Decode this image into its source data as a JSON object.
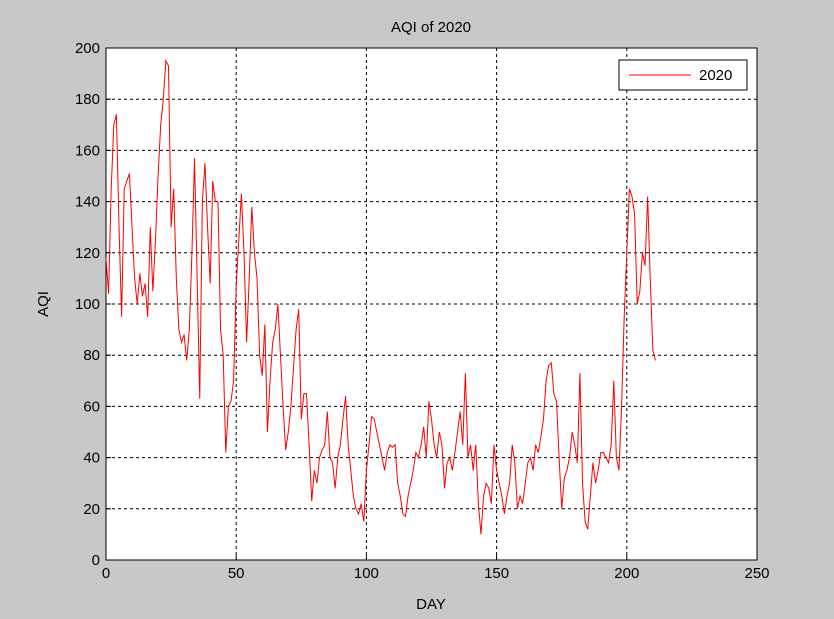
{
  "chart_data": {
    "type": "line",
    "title": "AQI of 2020",
    "x_label": "DAY",
    "y_label": "AQI",
    "xlim": [
      0,
      250
    ],
    "xticks": [
      0,
      50,
      100,
      150,
      200,
      250
    ],
    "ylim": [
      0,
      200
    ],
    "yticks": [
      0,
      20,
      40,
      60,
      80,
      100,
      120,
      140,
      160,
      180,
      200
    ],
    "grid": true,
    "legend": "upper right",
    "series": [
      {
        "name": "2020",
        "color": "#ff0000",
        "values": [
          118,
          104,
          145,
          170,
          174,
          130,
          95,
          145,
          148,
          151,
          130,
          110,
          100,
          112,
          103,
          108,
          95,
          130,
          105,
          125,
          150,
          170,
          180,
          195,
          193,
          130,
          145,
          110,
          90,
          85,
          88,
          78,
          90,
          120,
          157,
          110,
          63,
          140,
          155,
          130,
          108,
          148,
          140,
          140,
          90,
          80,
          42,
          60,
          62,
          70,
          107,
          125,
          143,
          120,
          85,
          110,
          138,
          120,
          110,
          80,
          72,
          92,
          50,
          70,
          85,
          90,
          100,
          80,
          60,
          43,
          50,
          60,
          75,
          90,
          98,
          55,
          65,
          65,
          45,
          23,
          35,
          30,
          40,
          43,
          45,
          58,
          40,
          38,
          28,
          40,
          45,
          55,
          64,
          45,
          35,
          25,
          20,
          18,
          22,
          15,
          35,
          45,
          56,
          55,
          50,
          45,
          40,
          35,
          42,
          45,
          44,
          45,
          30,
          25,
          18,
          17,
          25,
          30,
          35,
          42,
          40,
          45,
          52,
          40,
          62,
          55,
          45,
          40,
          50,
          45,
          28,
          38,
          40,
          35,
          42,
          50,
          58,
          45,
          73,
          40,
          45,
          35,
          45,
          22,
          10,
          25,
          30,
          28,
          22,
          45,
          35,
          30,
          25,
          18,
          25,
          30,
          45,
          38,
          20,
          25,
          22,
          30,
          38,
          40,
          35,
          45,
          42,
          48,
          55,
          70,
          76,
          77,
          65,
          62,
          40,
          20,
          32,
          35,
          40,
          50,
          45,
          38,
          73,
          30,
          15,
          12,
          25,
          38,
          30,
          35,
          42,
          42,
          40,
          38,
          45,
          70,
          40,
          35,
          60,
          95,
          120,
          145,
          142,
          135,
          100,
          105,
          120,
          115,
          142,
          110,
          82,
          78
        ]
      }
    ]
  }
}
